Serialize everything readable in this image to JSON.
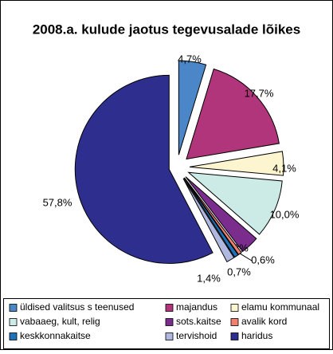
{
  "chart_data": {
    "type": "pie",
    "title": "2008.a. kulude jaotus tegevusalade lõikes",
    "categories": [
      "üldised valitsus s teenused",
      "majandus",
      "elamu kommunaal",
      "vabaaeg, kult, relig",
      "sots.kaitse",
      "avalik kord",
      "keskkonnakaitse",
      "tervishoid",
      "haridus"
    ],
    "values": [
      4.7,
      17.7,
      4.1,
      10.0,
      3.2,
      0.6,
      0.7,
      1.4,
      57.8
    ],
    "value_labels": [
      "4,7%",
      "17,7%",
      "4,1%",
      "10,0%",
      "3,2%",
      "0,6%",
      "0,7%",
      "1,4%",
      "57,8%"
    ],
    "colors": [
      "#4a86c8",
      "#b0357a",
      "#fdf5cf",
      "#ccebe6",
      "#7b2d8e",
      "#f08070",
      "#1f72b8",
      "#b0b8e0",
      "#2e2e8e"
    ],
    "legend": "bottom"
  }
}
